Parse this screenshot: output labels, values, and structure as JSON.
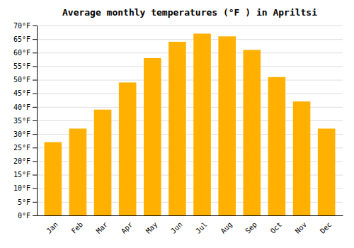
{
  "chart_data": {
    "type": "bar",
    "title": "Average monthly temperatures (°F ) in Apriltsi",
    "categories": [
      "Jan",
      "Feb",
      "Mar",
      "Apr",
      "May",
      "Jun",
      "Jul",
      "Aug",
      "Sep",
      "Oct",
      "Nov",
      "Dec"
    ],
    "values": [
      27,
      32,
      39,
      49,
      58,
      64,
      67,
      66,
      61,
      51,
      42,
      32
    ],
    "color": "#FFB000",
    "ylim": [
      0,
      70
    ],
    "yticks": [
      {
        "value": 0,
        "label": "0°F"
      },
      {
        "value": 5,
        "label": "5°F"
      },
      {
        "value": 10,
        "label": "10°F"
      },
      {
        "value": 15,
        "label": "15°F"
      },
      {
        "value": 20,
        "label": "20°F"
      },
      {
        "value": 25,
        "label": "25°F"
      },
      {
        "value": 30,
        "label": "30°F"
      },
      {
        "value": 35,
        "label": "35°F"
      },
      {
        "value": 40,
        "label": "40°F"
      },
      {
        "value": 45,
        "label": "45°F"
      },
      {
        "value": 50,
        "label": "50°F"
      },
      {
        "value": 55,
        "label": "55°F"
      },
      {
        "value": 60,
        "label": "60°F"
      },
      {
        "value": 65,
        "label": "65°F"
      },
      {
        "value": 70,
        "label": "70°F"
      }
    ],
    "grid": true
  }
}
